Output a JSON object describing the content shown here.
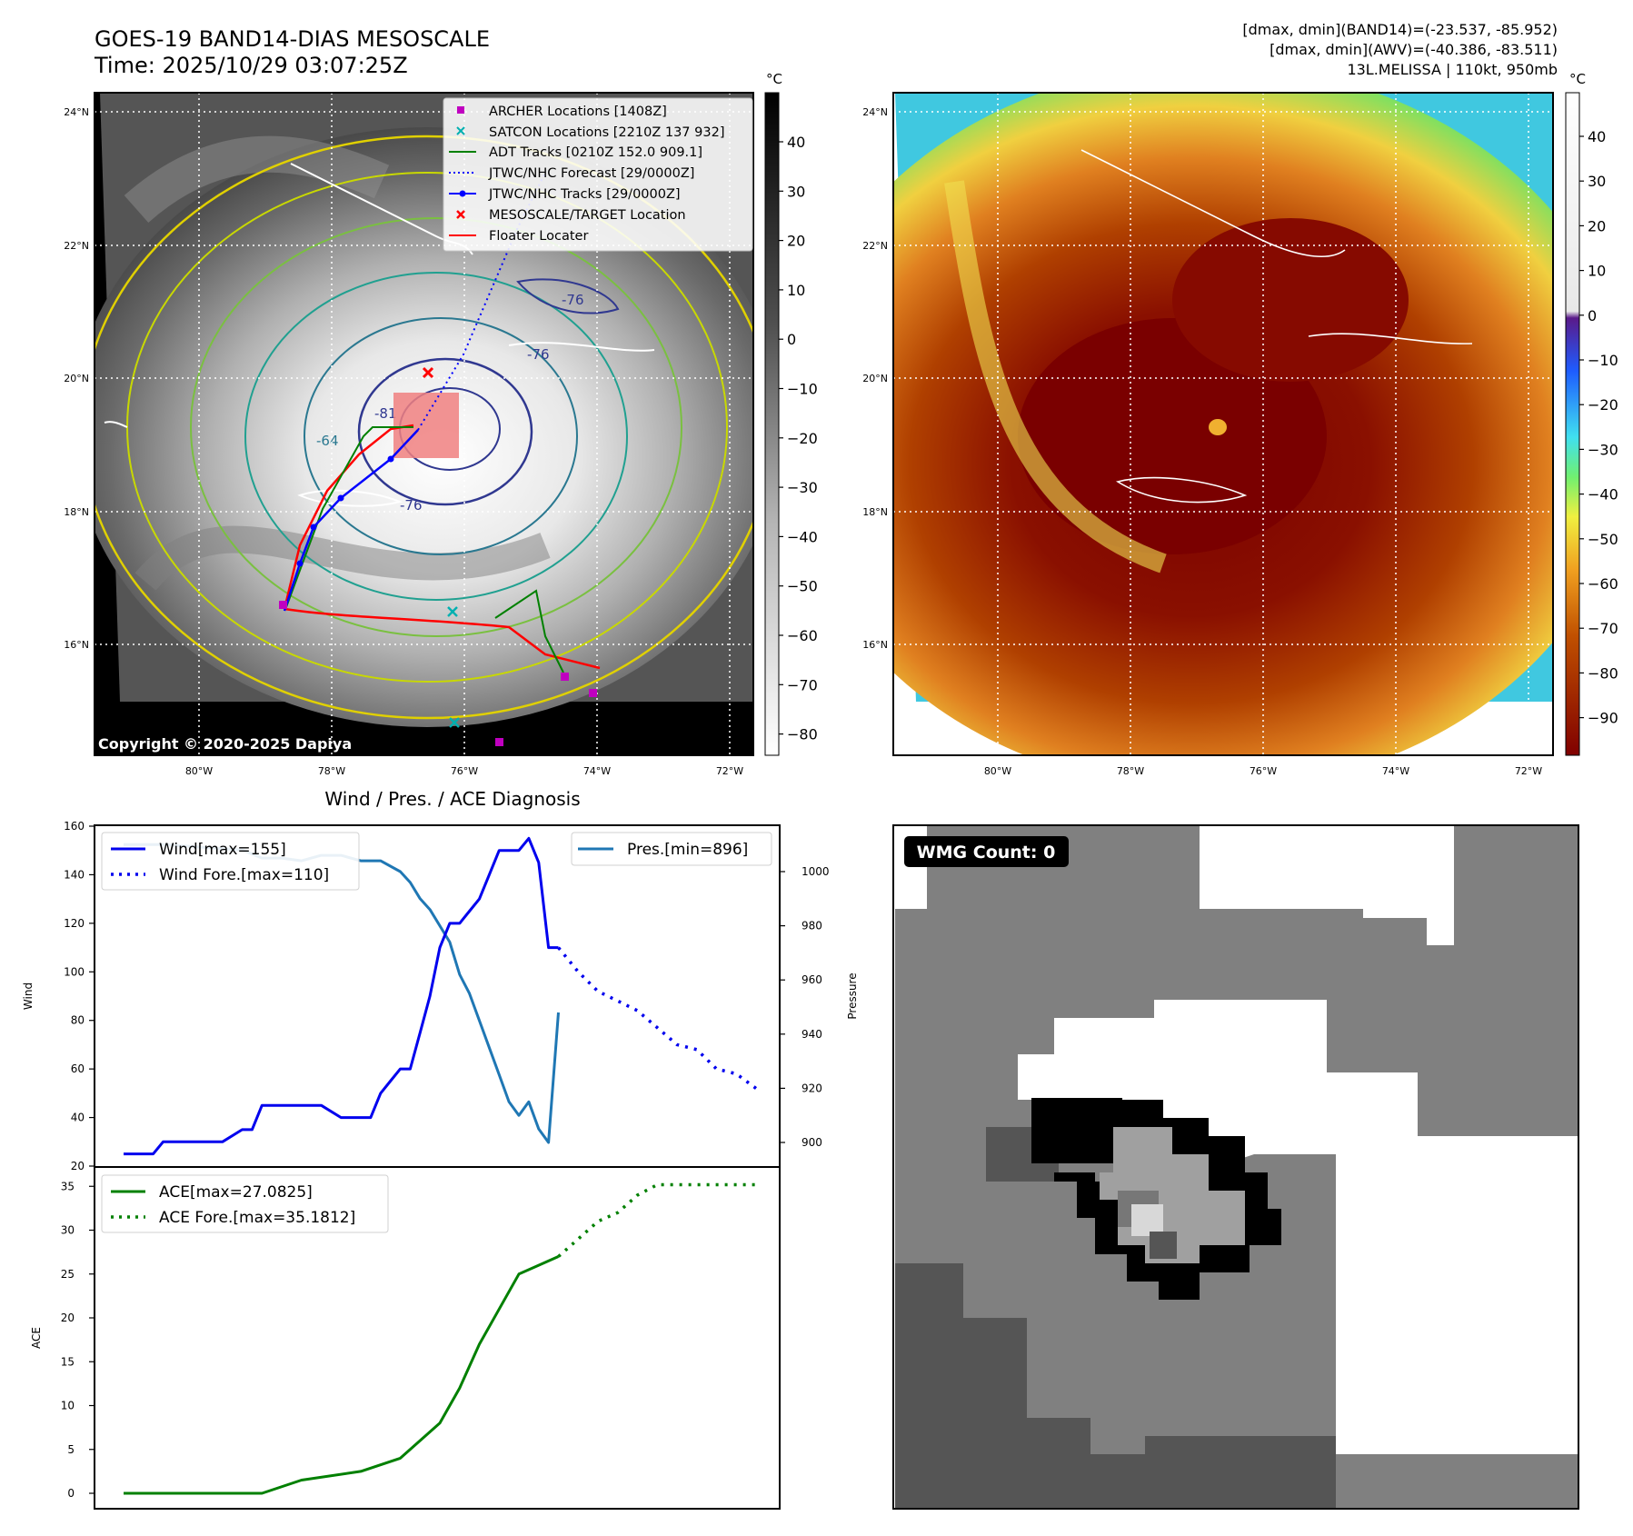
{
  "header": {
    "title": "GOES-19 BAND14-DIAS MESOSCALE",
    "time": "Time: 2025/10/29 03:07:25Z",
    "stats_band14": "[dmax, dmin](BAND14)=(-23.537, -85.952)",
    "stats_awv": "[dmax, dmin](AWV)=(-40.386, -83.511)",
    "storm": "13L.MELISSA | 110kt, 950mb"
  },
  "map_ir": {
    "lat_labels": [
      "24°N",
      "22°N",
      "20°N",
      "18°N",
      "16°N"
    ],
    "lon_labels": [
      "80°W",
      "78°W",
      "76°W",
      "74°W",
      "72°W"
    ],
    "contour_labels": [
      "-76",
      "-76",
      "-76",
      "-64",
      "-81"
    ],
    "copyright": "Copyright © 2020-2025 Dapiya",
    "colorbar_unit": "°C",
    "colorbar_ticks": [
      "40",
      "30",
      "20",
      "10",
      "0",
      "−10",
      "−20",
      "−30",
      "−40",
      "−50",
      "−60",
      "−70",
      "−80"
    ],
    "legend": [
      {
        "label": "ARCHER Locations [1408Z]",
        "color": "#c000c0",
        "icon": "square-marker"
      },
      {
        "label": "SATCON Locations [2210Z 137 932]",
        "color": "#00b0b0",
        "icon": "x-marker"
      },
      {
        "label": "ADT Tracks [0210Z 152.0 909.1]",
        "color": "#008000",
        "icon": "line"
      },
      {
        "label": "JTWC/NHC Forecast [29/0000Z]",
        "color": "#0000ff",
        "icon": "dotted-line"
      },
      {
        "label": "JTWC/NHC Tracks [29/0000Z]",
        "color": "#0000ff",
        "icon": "line-dot"
      },
      {
        "label": "MESOSCALE/TARGET Location",
        "color": "#ff0000",
        "icon": "x-marker"
      },
      {
        "label": "Floater Locater",
        "color": "#ff0000",
        "icon": "line"
      }
    ]
  },
  "map_awv": {
    "lat_labels": [
      "24°N",
      "22°N",
      "20°N",
      "18°N",
      "16°N"
    ],
    "lon_labels": [
      "80°W",
      "78°W",
      "76°W",
      "74°W",
      "72°W"
    ],
    "colorbar_unit": "°C",
    "colorbar_ticks": [
      "40",
      "30",
      "20",
      "10",
      "0",
      "−10",
      "−20",
      "−30",
      "−40",
      "−50",
      "−60",
      "−70",
      "−80",
      "−90"
    ]
  },
  "wmg": {
    "badge": "WMG Count: 0"
  },
  "colors": {
    "wind": "#0000ee",
    "pressure": "#1f77b4",
    "ace": "#008000",
    "marker_red": "#ff0000"
  },
  "chart_data": [
    {
      "type": "line",
      "title": "Wind / Pres. / ACE Diagnosis",
      "ylabel": "Wind",
      "ylabel_right": "Pressure",
      "ylim": [
        20,
        160
      ],
      "ylim_right": [
        893,
        1014
      ],
      "yticks": [
        "160",
        "140",
        "120",
        "100",
        "80",
        "60",
        "40",
        "20"
      ],
      "yticks_right": [
        "1000",
        "980",
        "960",
        "940",
        "920",
        "900"
      ],
      "legend_left": [
        "Wind[max=155]",
        "Wind Fore.[max=110]"
      ],
      "legend_right": [
        "Pres.[min=896]"
      ],
      "series": [
        {
          "name": "Wind[max=155]",
          "x": [
            0,
            1.5,
            2,
            4,
            5,
            6,
            6.5,
            7,
            8,
            10,
            11,
            12,
            12.5,
            13,
            13.5,
            14,
            14.5,
            15,
            15.5,
            16,
            16.5,
            17,
            17.5,
            18,
            18.5,
            19,
            19.5,
            20,
            20.5,
            21,
            21.5,
            22
          ],
          "values": [
            25,
            25,
            30,
            30,
            30,
            35,
            35,
            45,
            45,
            45,
            40,
            40,
            40,
            50,
            55,
            60,
            60,
            75,
            90,
            110,
            120,
            120,
            125,
            130,
            140,
            150,
            150,
            150,
            155,
            145,
            110,
            110
          ]
        },
        {
          "name": "Wind Fore.[max=110]",
          "x": [
            22,
            23,
            24,
            25,
            26,
            27,
            28,
            29,
            30,
            31,
            32
          ],
          "values": [
            110,
            100,
            92,
            88,
            84,
            77,
            70,
            68,
            60,
            58,
            52
          ]
        },
        {
          "name": "Pres.[min=896]",
          "x": [
            0,
            2,
            4,
            6,
            7,
            8,
            9,
            10,
            11,
            12,
            13,
            14,
            14.5,
            15,
            15.5,
            16,
            16.5,
            17,
            17.5,
            18,
            18.5,
            19,
            19.5,
            20,
            20.5,
            21,
            21.5,
            22
          ],
          "values": [
            1010,
            1010,
            1009,
            1008,
            1005,
            1005,
            1004,
            1006,
            1006,
            1004,
            1004,
            1000,
            996,
            990,
            986,
            980,
            974,
            962,
            955,
            945,
            935,
            925,
            915,
            910,
            915,
            905,
            900,
            948
          ]
        }
      ]
    },
    {
      "type": "line",
      "ylabel": "ACE",
      "ylim": [
        -1.5,
        36
      ],
      "yticks": [
        "35",
        "30",
        "25",
        "20",
        "15",
        "10",
        "5",
        "0"
      ],
      "legend": [
        "ACE[max=27.0825]",
        "ACE Fore.[max=35.1812]"
      ],
      "series": [
        {
          "name": "ACE[max=27.0825]",
          "x": [
            0,
            4,
            7,
            9,
            12,
            14,
            16,
            17,
            18,
            19,
            20,
            21,
            22
          ],
          "values": [
            0,
            0,
            0,
            1.5,
            2.5,
            4,
            8,
            12,
            17,
            21,
            25,
            26,
            27
          ]
        },
        {
          "name": "ACE Fore.[max=35.1812]",
          "x": [
            22,
            23,
            24,
            25,
            26,
            27,
            28,
            29,
            30,
            31,
            32
          ],
          "values": [
            27,
            29,
            31,
            32,
            34,
            35.18,
            35.18,
            35.18,
            35.18,
            35.18,
            35.18
          ]
        }
      ]
    }
  ]
}
